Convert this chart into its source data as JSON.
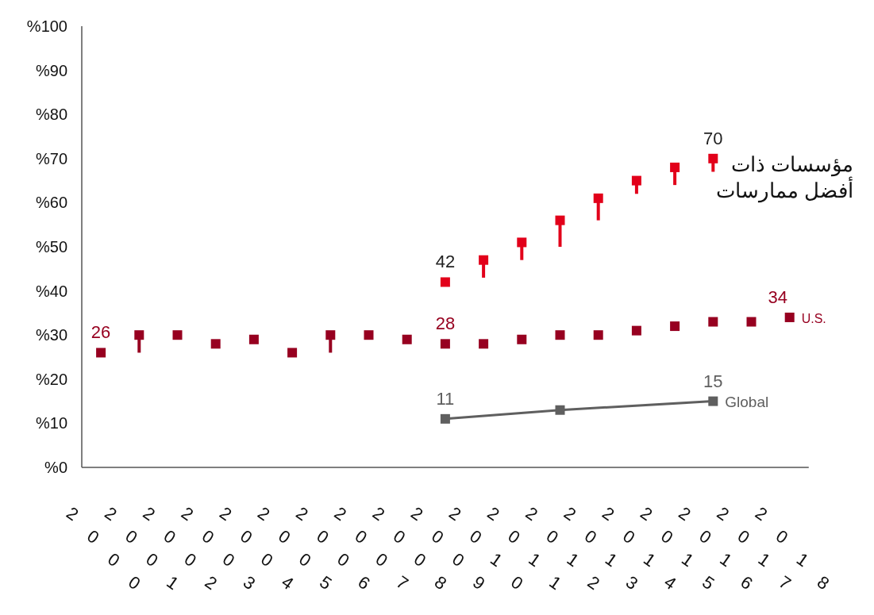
{
  "chart_data": {
    "type": "scatter",
    "categories": [
      "2000",
      "2001",
      "2002",
      "2003",
      "2004",
      "2005",
      "2006",
      "2007",
      "2008",
      "2009",
      "2010",
      "2011",
      "2012",
      "2013",
      "2014",
      "2015",
      "2016",
      "2017",
      "2018"
    ],
    "ylim": [
      0,
      100
    ],
    "yticks": [
      {
        "value": 0,
        "label": "%0"
      },
      {
        "value": 10,
        "label": "%10"
      },
      {
        "value": 20,
        "label": "%20"
      },
      {
        "value": 30,
        "label": "%30"
      },
      {
        "value": 40,
        "label": "%40"
      },
      {
        "value": 50,
        "label": "%50"
      },
      {
        "value": 60,
        "label": "%60"
      },
      {
        "value": 70,
        "label": "%70"
      },
      {
        "value": 80,
        "label": "%80"
      },
      {
        "value": 90,
        "label": "%90"
      },
      {
        "value": 100,
        "label": "%100"
      }
    ],
    "grid": false,
    "marker": "square",
    "series": [
      {
        "name": "مؤسسات ذات أفضل ممارسات",
        "color": "#e2001a",
        "values": [
          null,
          null,
          null,
          null,
          null,
          null,
          null,
          null,
          null,
          42,
          47,
          51,
          56,
          61,
          65,
          68,
          70,
          null,
          null
        ],
        "errors": [
          null,
          null,
          null,
          null,
          null,
          null,
          null,
          null,
          null,
          null,
          [
            43,
            47
          ],
          [
            47,
            51
          ],
          [
            50,
            56
          ],
          [
            56,
            61
          ],
          [
            62,
            65
          ],
          [
            64,
            68
          ],
          [
            67,
            70
          ],
          null,
          null
        ],
        "value_labels": [
          null,
          null,
          null,
          null,
          null,
          null,
          null,
          null,
          null,
          "42",
          null,
          null,
          null,
          null,
          null,
          null,
          "70",
          null,
          null
        ]
      },
      {
        "name": "U.S.",
        "color": "#970020",
        "values": [
          26,
          30,
          30,
          28,
          29,
          26,
          30,
          30,
          29,
          28,
          28,
          29,
          30,
          30,
          31,
          32,
          33,
          33,
          34
        ],
        "errors": [
          null,
          [
            26,
            30
          ],
          null,
          null,
          null,
          null,
          [
            26,
            30
          ],
          null,
          null,
          null,
          null,
          null,
          null,
          null,
          null,
          null,
          null,
          null,
          null
        ],
        "value_labels": [
          "26",
          null,
          null,
          null,
          null,
          null,
          null,
          null,
          null,
          "28",
          null,
          null,
          null,
          null,
          null,
          null,
          null,
          null,
          "34"
        ]
      },
      {
        "name": "Global",
        "type": "line",
        "color": "#5f5f5f",
        "values": [
          null,
          null,
          null,
          null,
          null,
          null,
          null,
          null,
          null,
          11,
          null,
          null,
          13,
          null,
          null,
          null,
          15,
          null,
          null
        ],
        "value_labels": [
          null,
          null,
          null,
          null,
          null,
          null,
          null,
          null,
          null,
          "11",
          null,
          null,
          null,
          null,
          null,
          null,
          "15",
          null,
          null
        ]
      }
    ]
  }
}
